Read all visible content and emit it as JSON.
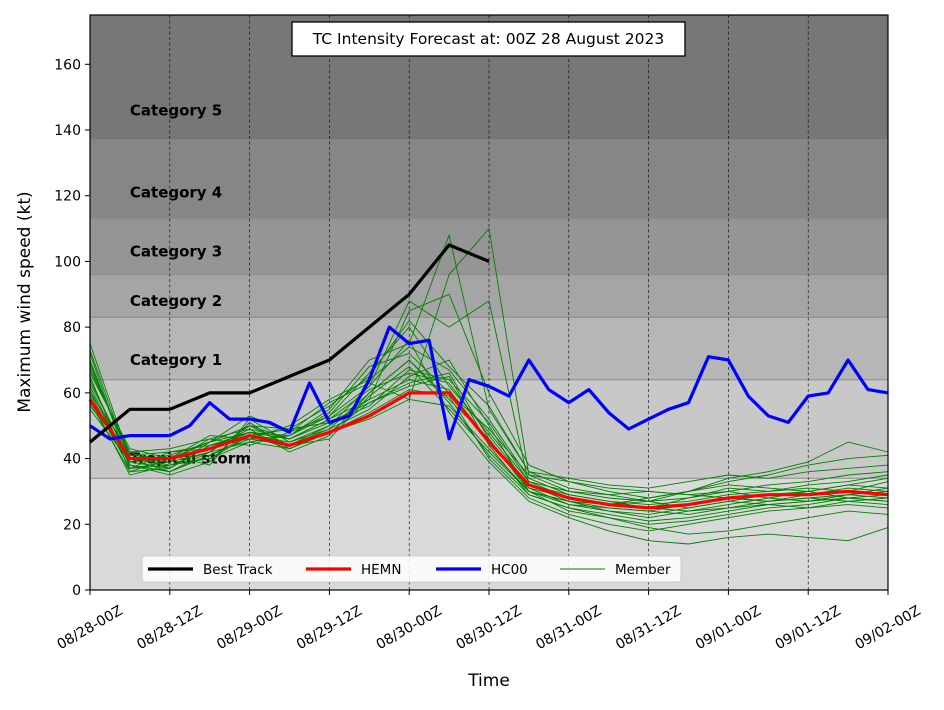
{
  "chart_data": {
    "type": "line",
    "title": "TC Intensity Forecast at: 00Z 28 August 2023",
    "xlabel": "Time",
    "ylabel": "Maximum wind speed (kt)",
    "ylim": [
      0,
      175
    ],
    "xlim_hours": [
      0,
      120
    ],
    "yticks": [
      0,
      20,
      40,
      60,
      80,
      100,
      120,
      140,
      160
    ],
    "xticks": [
      {
        "hour": 0,
        "label": "08/28-00Z"
      },
      {
        "hour": 12,
        "label": "08/28-12Z"
      },
      {
        "hour": 24,
        "label": "08/29-00Z"
      },
      {
        "hour": 36,
        "label": "08/29-12Z"
      },
      {
        "hour": 48,
        "label": "08/30-00Z"
      },
      {
        "hour": 60,
        "label": "08/30-12Z"
      },
      {
        "hour": 72,
        "label": "08/31-00Z"
      },
      {
        "hour": 84,
        "label": "08/31-12Z"
      },
      {
        "hour": 96,
        "label": "09/01-00Z"
      },
      {
        "hour": 108,
        "label": "09/01-12Z"
      },
      {
        "hour": 120,
        "label": "09/02-00Z"
      }
    ],
    "grid": "vertical dashed",
    "legend_position": "bottom",
    "bands": [
      {
        "name": "Tropical storm",
        "min": 34,
        "max": 64,
        "color": "#c8c8c8"
      },
      {
        "name": "Category 1",
        "min": 64,
        "max": 83,
        "color": "#b6b6b6"
      },
      {
        "name": "Category 2",
        "min": 83,
        "max": 96,
        "color": "#a5a5a5"
      },
      {
        "name": "Category 3",
        "min": 96,
        "max": 113,
        "color": "#959595"
      },
      {
        "name": "Category 4",
        "min": 113,
        "max": 137,
        "color": "#868686"
      },
      {
        "name": "Category 5",
        "min": 137,
        "max": 175,
        "color": "#777777"
      }
    ],
    "below_band_color": "#d9d9d9",
    "series": [
      {
        "name": "Best Track",
        "color": "#000000",
        "x": [
          0,
          6,
          12,
          18,
          24,
          30,
          36,
          42,
          48,
          54,
          60
        ],
        "values": [
          45,
          55,
          55,
          60,
          60,
          65,
          70,
          80,
          90,
          105,
          100
        ]
      },
      {
        "name": "HEMN",
        "color": "#ff0000",
        "x": [
          0,
          6,
          12,
          18,
          24,
          30,
          36,
          42,
          48,
          54,
          60,
          66,
          72,
          78,
          84,
          90,
          96,
          102,
          108,
          114,
          120
        ],
        "values": [
          58,
          40,
          40,
          43,
          47,
          44,
          48,
          53,
          60,
          60,
          45,
          32,
          28,
          26,
          25,
          26,
          28,
          29,
          29,
          30,
          29
        ]
      },
      {
        "name": "HC00",
        "color": "#0000ff",
        "x": [
          0,
          3,
          6,
          9,
          12,
          15,
          18,
          21,
          24,
          27,
          30,
          33,
          36,
          39,
          42,
          45,
          48,
          51,
          54,
          57,
          60,
          63,
          66,
          69,
          72,
          75,
          78,
          81,
          84,
          87,
          90,
          93,
          96,
          99,
          102,
          105,
          108,
          111,
          114,
          117,
          120
        ],
        "values": [
          50,
          46,
          47,
          47,
          47,
          50,
          57,
          52,
          52,
          51,
          48,
          63,
          51,
          53,
          64,
          80,
          75,
          76,
          46,
          64,
          62,
          59,
          70,
          61,
          57,
          61,
          54,
          49,
          52,
          55,
          57,
          71,
          70,
          59,
          53,
          51,
          59,
          60,
          70,
          61,
          60
        ]
      },
      {
        "name": "Member",
        "color": "#008000",
        "ensemble": true,
        "x": [
          0,
          6,
          12,
          18,
          24,
          30,
          36,
          42,
          48,
          54,
          60,
          66,
          72,
          78,
          84,
          90,
          96,
          102,
          108,
          114,
          120
        ],
        "members": [
          [
            75,
            40,
            38,
            40,
            45,
            43,
            48,
            52,
            58,
            96,
            110,
            35,
            30,
            28,
            27,
            28,
            30,
            32,
            33,
            35,
            36
          ],
          [
            70,
            38,
            36,
            42,
            50,
            46,
            52,
            58,
            85,
            90,
            60,
            38,
            33,
            30,
            28,
            30,
            32,
            31,
            30,
            32,
            34
          ],
          [
            65,
            36,
            40,
            45,
            48,
            44,
            50,
            62,
            88,
            80,
            88,
            32,
            29,
            27,
            26,
            27,
            29,
            30,
            31,
            30,
            33
          ],
          [
            60,
            42,
            37,
            44,
            46,
            47,
            55,
            70,
            75,
            108,
            55,
            36,
            31,
            29,
            30,
            29,
            28,
            27,
            29,
            31,
            30
          ],
          [
            55,
            39,
            41,
            38,
            52,
            45,
            49,
            55,
            65,
            70,
            50,
            30,
            27,
            24,
            22,
            24,
            26,
            28,
            27,
            29,
            31
          ],
          [
            72,
            37,
            39,
            46,
            44,
            48,
            53,
            66,
            80,
            62,
            48,
            33,
            28,
            26,
            27,
            25,
            27,
            29,
            30,
            28,
            29
          ],
          [
            68,
            41,
            42,
            43,
            49,
            42,
            47,
            60,
            70,
            58,
            46,
            31,
            26,
            25,
            24,
            26,
            28,
            27,
            28,
            29,
            28
          ],
          [
            63,
            40,
            36,
            41,
            47,
            49,
            51,
            57,
            62,
            65,
            44,
            29,
            25,
            23,
            21,
            22,
            24,
            26,
            25,
            27,
            28
          ],
          [
            58,
            35,
            38,
            42,
            50,
            44,
            46,
            59,
            68,
            55,
            42,
            30,
            24,
            22,
            20,
            21,
            23,
            25,
            26,
            28,
            27
          ],
          [
            66,
            43,
            40,
            47,
            46,
            50,
            58,
            64,
            74,
            67,
            52,
            34,
            29,
            27,
            25,
            28,
            31,
            30,
            32,
            33,
            35
          ],
          [
            62,
            38,
            35,
            39,
            51,
            43,
            48,
            54,
            61,
            59,
            40,
            28,
            23,
            20,
            18,
            20,
            22,
            24,
            25,
            26,
            25
          ],
          [
            57,
            36,
            37,
            44,
            48,
            46,
            52,
            61,
            66,
            63,
            47,
            32,
            27,
            25,
            24,
            23,
            25,
            27,
            28,
            27,
            26
          ],
          [
            69,
            40,
            39,
            42,
            45,
            47,
            54,
            68,
            72,
            60,
            49,
            35,
            33,
            31,
            30,
            29,
            30,
            28,
            30,
            32,
            31
          ],
          [
            64,
            39,
            41,
            45,
            53,
            48,
            57,
            63,
            58,
            56,
            43,
            30,
            26,
            24,
            23,
            25,
            27,
            26,
            27,
            29,
            30
          ],
          [
            59,
            37,
            38,
            40,
            47,
            45,
            50,
            58,
            64,
            61,
            45,
            31,
            28,
            26,
            28,
            30,
            33,
            35,
            38,
            40,
            41
          ],
          [
            67,
            42,
            43,
            46,
            49,
            46,
            51,
            56,
            67,
            64,
            51,
            33,
            30,
            29,
            27,
            30,
            34,
            36,
            39,
            45,
            42
          ],
          [
            61,
            38,
            36,
            41,
            46,
            44,
            49,
            60,
            70,
            57,
            41,
            29,
            25,
            22,
            19,
            17,
            18,
            20,
            22,
            24,
            23
          ],
          [
            56,
            41,
            40,
            43,
            48,
            47,
            53,
            62,
            76,
            54,
            39,
            27,
            22,
            18,
            15,
            14,
            16,
            17,
            16,
            15,
            19
          ],
          [
            73,
            39,
            37,
            45,
            50,
            49,
            56,
            65,
            82,
            68,
            56,
            36,
            34,
            32,
            31,
            33,
            35,
            34,
            36,
            37,
            38
          ],
          [
            60,
            37,
            42,
            44,
            47,
            43,
            48,
            57,
            63,
            66,
            46,
            30,
            27,
            26,
            25,
            24,
            25,
            26,
            27,
            28,
            27
          ]
        ]
      }
    ]
  }
}
